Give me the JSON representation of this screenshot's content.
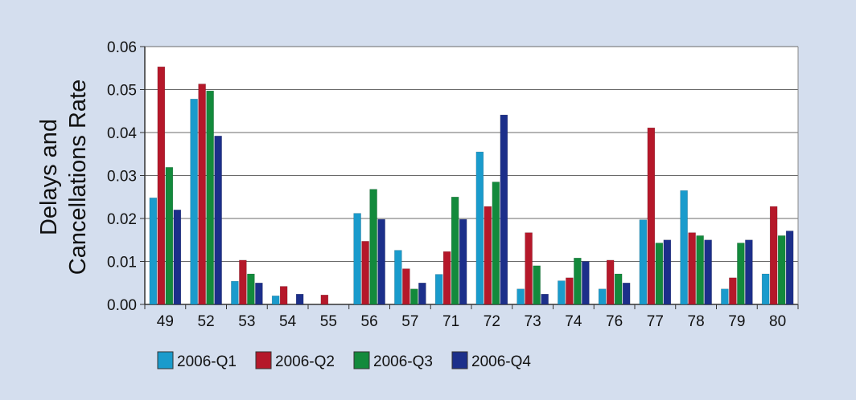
{
  "chart_data": {
    "type": "bar",
    "title": "",
    "xlabel": "",
    "ylabel": [
      "Delays and",
      "Cancellations Rate"
    ],
    "ylim": [
      0,
      0.06
    ],
    "yticks": [
      "0.00",
      "0.01",
      "0.02",
      "0.03",
      "0.04",
      "0.05",
      "0.06"
    ],
    "grid": true,
    "legend_position": "bottom",
    "categories": [
      "49",
      "52",
      "53",
      "54",
      "55",
      "56",
      "57",
      "71",
      "72",
      "73",
      "74",
      "76",
      "77",
      "78",
      "79",
      "80"
    ],
    "series": [
      {
        "name": "2006-Q1",
        "color": "#1a9bcc",
        "values": [
          0.0248,
          0.0478,
          0.0054,
          0.002,
          0.0,
          0.0212,
          0.0126,
          0.007,
          0.0355,
          0.0036,
          0.0055,
          0.0036,
          0.0197,
          0.0265,
          0.0036,
          0.0071
        ]
      },
      {
        "name": "2006-Q2",
        "color": "#b5182a",
        "values": [
          0.0553,
          0.0513,
          0.0103,
          0.0042,
          0.0022,
          0.0147,
          0.0083,
          0.0123,
          0.0228,
          0.0167,
          0.0062,
          0.0103,
          0.0411,
          0.0167,
          0.0062,
          0.0228
        ]
      },
      {
        "name": "2006-Q3",
        "color": "#138a3c",
        "values": [
          0.0319,
          0.0497,
          0.0071,
          0.0,
          0.0,
          0.0268,
          0.0036,
          0.025,
          0.0285,
          0.009,
          0.0108,
          0.0071,
          0.0143,
          0.016,
          0.0143,
          0.016
        ]
      },
      {
        "name": "2006-Q4",
        "color": "#1c2f8a",
        "values": [
          0.022,
          0.0392,
          0.005,
          0.0024,
          0.0,
          0.0198,
          0.005,
          0.0198,
          0.0441,
          0.0024,
          0.01,
          0.005,
          0.015,
          0.015,
          0.015,
          0.0171
        ]
      }
    ]
  }
}
